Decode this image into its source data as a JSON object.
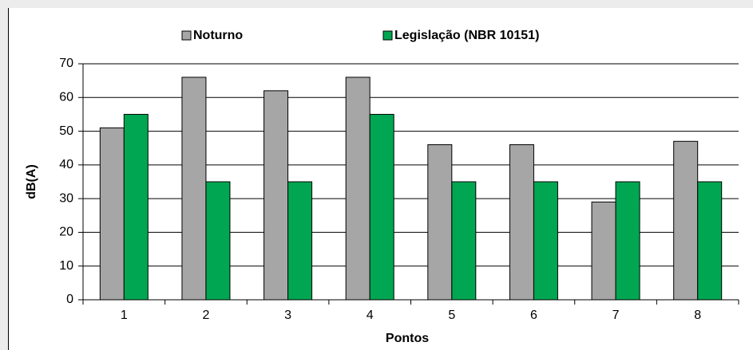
{
  "chart_data": {
    "type": "bar",
    "xlabel": "Pontos",
    "ylabel": "dB(A)",
    "categories": [
      "1",
      "2",
      "3",
      "4",
      "5",
      "6",
      "7",
      "8"
    ],
    "series": [
      {
        "name": "Noturno",
        "color": "#a6a6a6",
        "values": [
          51,
          66,
          62,
          66,
          46,
          46,
          29,
          47
        ]
      },
      {
        "name": "Legislação (NBR 10151)",
        "color": "#00a651",
        "values": [
          55,
          35,
          35,
          55,
          35,
          35,
          35,
          35
        ]
      }
    ],
    "ylim": [
      0,
      70
    ],
    "yticks": [
      0,
      10,
      20,
      30,
      40,
      50,
      60,
      70
    ],
    "grid": true,
    "legend": "top"
  }
}
